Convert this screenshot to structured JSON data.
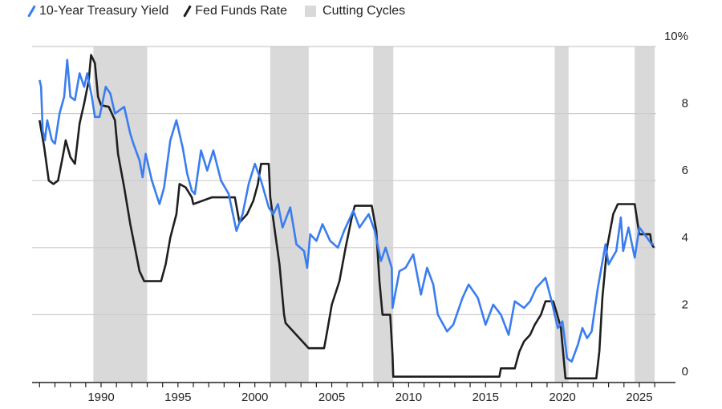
{
  "chart_data": {
    "type": "line",
    "title": "",
    "xlabel": "",
    "ylabel": "",
    "xlim": [
      1986,
      2026
    ],
    "ylim": [
      0,
      10
    ],
    "y_ticks": [
      0,
      2,
      4,
      6,
      8,
      10
    ],
    "y_tick_labels": [
      "0",
      "2",
      "4",
      "6",
      "8",
      "10%"
    ],
    "x_ticks": [
      1990,
      1995,
      2000,
      2005,
      2010,
      2015,
      2020,
      2025
    ],
    "x_tick_labels": [
      "1990",
      "1995",
      "2000",
      "2005",
      "2010",
      "2015",
      "2020",
      "2025"
    ],
    "grid": true,
    "legend": {
      "placement": "top-left",
      "entries": [
        "10-Year Treasury Yield",
        "Fed Funds Rate",
        "Cutting Cycles"
      ]
    },
    "colors": {
      "treasury": "#3a7df0",
      "fed": "#1f1f1f",
      "cutting": "#d9d9d9",
      "grid": "#cccccc"
    },
    "cutting_cycles": [
      [
        1989.5,
        1993.0
      ],
      [
        2001.0,
        2003.5
      ],
      [
        2007.7,
        2009.0
      ],
      [
        2019.5,
        2020.4
      ],
      [
        2024.7,
        2026.0
      ]
    ],
    "series": [
      {
        "name": "10-Year Treasury Yield",
        "points": [
          [
            1986.0,
            9.0
          ],
          [
            1986.1,
            8.8
          ],
          [
            1986.2,
            7.5
          ],
          [
            1986.35,
            7.2
          ],
          [
            1986.5,
            7.8
          ],
          [
            1986.8,
            7.2
          ],
          [
            1987.0,
            7.1
          ],
          [
            1987.3,
            8.0
          ],
          [
            1987.6,
            8.5
          ],
          [
            1987.8,
            9.6
          ],
          [
            1988.0,
            8.5
          ],
          [
            1988.3,
            8.4
          ],
          [
            1988.6,
            9.2
          ],
          [
            1988.9,
            8.8
          ],
          [
            1989.1,
            9.2
          ],
          [
            1989.4,
            8.5
          ],
          [
            1989.6,
            7.9
          ],
          [
            1989.9,
            7.9
          ],
          [
            1990.3,
            8.8
          ],
          [
            1990.6,
            8.6
          ],
          [
            1990.9,
            8.0
          ],
          [
            1991.2,
            8.1
          ],
          [
            1991.5,
            8.2
          ],
          [
            1991.9,
            7.4
          ],
          [
            1992.1,
            7.1
          ],
          [
            1992.5,
            6.6
          ],
          [
            1992.7,
            6.1
          ],
          [
            1992.9,
            6.8
          ],
          [
            1993.3,
            6.0
          ],
          [
            1993.8,
            5.3
          ],
          [
            1994.1,
            5.8
          ],
          [
            1994.5,
            7.2
          ],
          [
            1994.9,
            7.8
          ],
          [
            1995.3,
            7.0
          ],
          [
            1995.6,
            6.2
          ],
          [
            1995.9,
            5.7
          ],
          [
            1996.1,
            5.6
          ],
          [
            1996.5,
            6.9
          ],
          [
            1996.9,
            6.3
          ],
          [
            1997.3,
            6.9
          ],
          [
            1997.8,
            6.0
          ],
          [
            1998.3,
            5.6
          ],
          [
            1998.8,
            4.5
          ],
          [
            1999.2,
            5.0
          ],
          [
            1999.6,
            5.9
          ],
          [
            2000.0,
            6.5
          ],
          [
            2000.4,
            6.0
          ],
          [
            2000.9,
            5.2
          ],
          [
            2001.2,
            5.0
          ],
          [
            2001.5,
            5.3
          ],
          [
            2001.8,
            4.6
          ],
          [
            2002.3,
            5.2
          ],
          [
            2002.7,
            4.1
          ],
          [
            2003.2,
            3.9
          ],
          [
            2003.4,
            3.4
          ],
          [
            2003.6,
            4.4
          ],
          [
            2004.0,
            4.2
          ],
          [
            2004.4,
            4.7
          ],
          [
            2004.9,
            4.2
          ],
          [
            2005.4,
            4.0
          ],
          [
            2005.8,
            4.5
          ],
          [
            2006.4,
            5.1
          ],
          [
            2006.8,
            4.6
          ],
          [
            2007.4,
            5.0
          ],
          [
            2007.8,
            4.5
          ],
          [
            2008.2,
            3.6
          ],
          [
            2008.5,
            4.0
          ],
          [
            2008.9,
            3.4
          ],
          [
            2008.95,
            2.2
          ],
          [
            2009.4,
            3.3
          ],
          [
            2009.8,
            3.4
          ],
          [
            2010.3,
            3.8
          ],
          [
            2010.8,
            2.6
          ],
          [
            2011.2,
            3.4
          ],
          [
            2011.6,
            2.9
          ],
          [
            2011.9,
            2.0
          ],
          [
            2012.5,
            1.5
          ],
          [
            2012.9,
            1.7
          ],
          [
            2013.5,
            2.5
          ],
          [
            2013.9,
            2.9
          ],
          [
            2014.5,
            2.5
          ],
          [
            2015.0,
            1.7
          ],
          [
            2015.5,
            2.3
          ],
          [
            2016.0,
            2.0
          ],
          [
            2016.5,
            1.4
          ],
          [
            2016.9,
            2.4
          ],
          [
            2017.5,
            2.2
          ],
          [
            2017.9,
            2.4
          ],
          [
            2018.3,
            2.8
          ],
          [
            2018.9,
            3.1
          ],
          [
            2019.3,
            2.4
          ],
          [
            2019.7,
            1.6
          ],
          [
            2020.0,
            1.8
          ],
          [
            2020.3,
            0.7
          ],
          [
            2020.6,
            0.6
          ],
          [
            2021.0,
            1.1
          ],
          [
            2021.3,
            1.6
          ],
          [
            2021.6,
            1.3
          ],
          [
            2021.9,
            1.5
          ],
          [
            2022.3,
            2.8
          ],
          [
            2022.8,
            4.1
          ],
          [
            2023.0,
            3.5
          ],
          [
            2023.5,
            3.9
          ],
          [
            2023.8,
            4.9
          ],
          [
            2023.95,
            3.9
          ],
          [
            2024.3,
            4.6
          ],
          [
            2024.7,
            3.7
          ],
          [
            2025.0,
            4.6
          ],
          [
            2025.5,
            4.3
          ],
          [
            2025.8,
            4.1
          ],
          [
            2025.95,
            4.1
          ]
        ]
      },
      {
        "name": "Fed Funds Rate",
        "points": [
          [
            1986.0,
            7.8
          ],
          [
            1986.3,
            7.0
          ],
          [
            1986.6,
            6.0
          ],
          [
            1986.9,
            5.9
          ],
          [
            1987.2,
            6.0
          ],
          [
            1987.5,
            6.7
          ],
          [
            1987.7,
            7.2
          ],
          [
            1988.0,
            6.7
          ],
          [
            1988.3,
            6.5
          ],
          [
            1988.6,
            7.7
          ],
          [
            1988.9,
            8.3
          ],
          [
            1989.2,
            9.0
          ],
          [
            1989.35,
            9.75
          ],
          [
            1989.6,
            9.5
          ],
          [
            1989.8,
            8.5
          ],
          [
            1990.0,
            8.25
          ],
          [
            1990.5,
            8.2
          ],
          [
            1990.9,
            7.8
          ],
          [
            1991.1,
            6.8
          ],
          [
            1991.5,
            5.8
          ],
          [
            1991.9,
            4.7
          ],
          [
            1992.2,
            4.0
          ],
          [
            1992.5,
            3.3
          ],
          [
            1992.8,
            3.0
          ],
          [
            1993.9,
            3.0
          ],
          [
            1994.2,
            3.5
          ],
          [
            1994.5,
            4.3
          ],
          [
            1994.9,
            5.0
          ],
          [
            1995.1,
            5.9
          ],
          [
            1995.5,
            5.8
          ],
          [
            1995.9,
            5.5
          ],
          [
            1996.0,
            5.3
          ],
          [
            1997.2,
            5.5
          ],
          [
            1998.7,
            5.5
          ],
          [
            1998.9,
            5.0
          ],
          [
            1999.0,
            4.75
          ],
          [
            1999.5,
            5.0
          ],
          [
            1999.9,
            5.4
          ],
          [
            2000.2,
            5.9
          ],
          [
            2000.4,
            6.5
          ],
          [
            2000.9,
            6.5
          ],
          [
            2001.0,
            5.5
          ],
          [
            2001.3,
            4.5
          ],
          [
            2001.6,
            3.5
          ],
          [
            2001.9,
            2.0
          ],
          [
            2002.0,
            1.75
          ],
          [
            2002.9,
            1.3
          ],
          [
            2003.5,
            1.0
          ],
          [
            2004.5,
            1.0
          ],
          [
            2004.7,
            1.5
          ],
          [
            2005.0,
            2.3
          ],
          [
            2005.5,
            3.0
          ],
          [
            2005.9,
            4.0
          ],
          [
            2006.3,
            4.9
          ],
          [
            2006.5,
            5.25
          ],
          [
            2007.6,
            5.25
          ],
          [
            2007.9,
            4.5
          ],
          [
            2008.1,
            3.0
          ],
          [
            2008.3,
            2.0
          ],
          [
            2008.8,
            2.0
          ],
          [
            2008.95,
            0.8
          ],
          [
            2009.0,
            0.15
          ],
          [
            2015.9,
            0.15
          ],
          [
            2016.0,
            0.4
          ],
          [
            2016.9,
            0.4
          ],
          [
            2017.2,
            0.9
          ],
          [
            2017.5,
            1.2
          ],
          [
            2017.9,
            1.4
          ],
          [
            2018.2,
            1.7
          ],
          [
            2018.6,
            2.0
          ],
          [
            2018.9,
            2.4
          ],
          [
            2019.4,
            2.4
          ],
          [
            2019.6,
            2.1
          ],
          [
            2019.9,
            1.6
          ],
          [
            2020.2,
            0.1
          ],
          [
            2022.2,
            0.1
          ],
          [
            2022.4,
            0.9
          ],
          [
            2022.6,
            2.5
          ],
          [
            2022.9,
            4.0
          ],
          [
            2023.3,
            5.0
          ],
          [
            2023.6,
            5.3
          ],
          [
            2024.7,
            5.3
          ],
          [
            2024.9,
            4.7
          ],
          [
            2025.0,
            4.4
          ],
          [
            2025.7,
            4.4
          ],
          [
            2025.8,
            4.1
          ],
          [
            2025.95,
            4.0
          ]
        ]
      }
    ]
  }
}
